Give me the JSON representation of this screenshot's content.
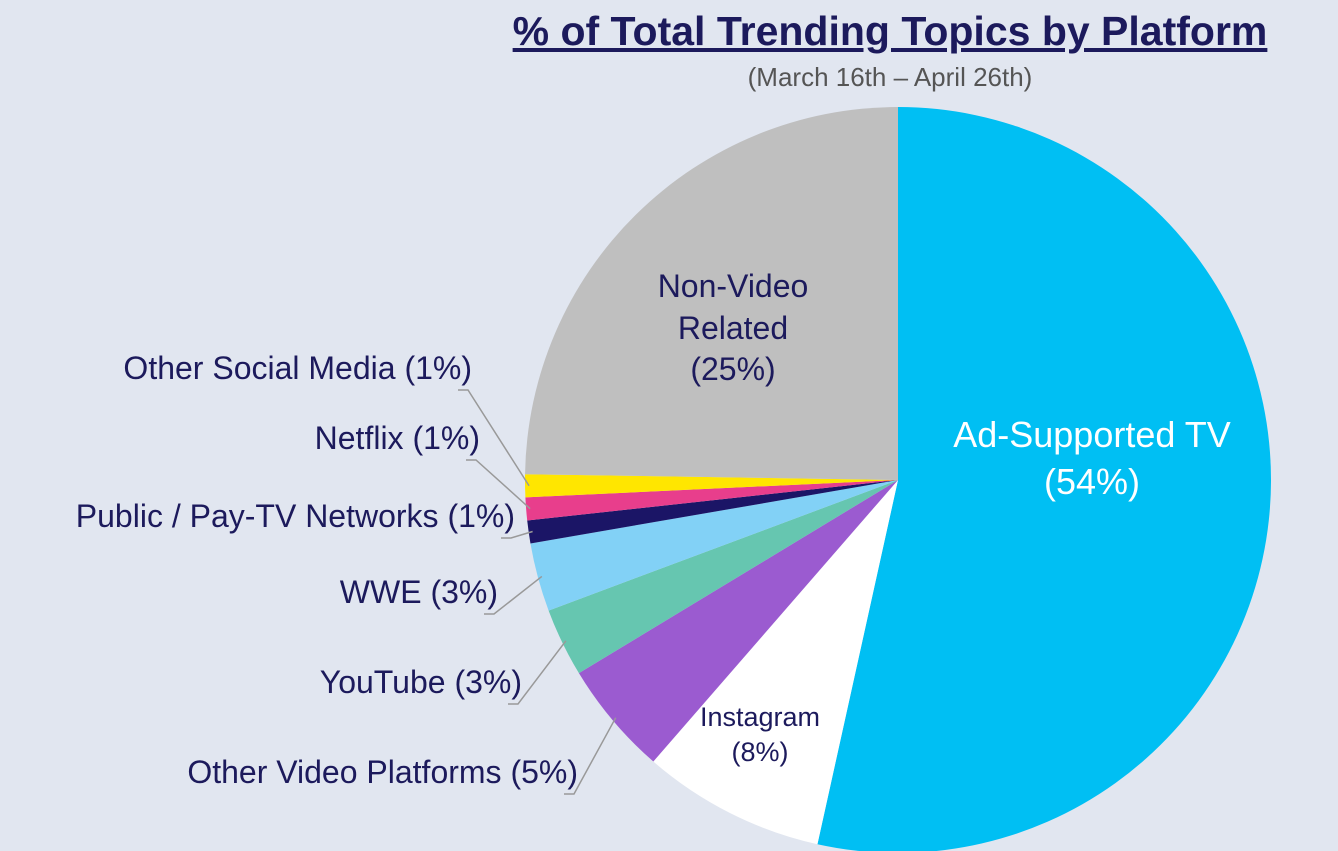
{
  "chart_data": {
    "type": "pie",
    "title": "% of Total Trending Topics by Platform",
    "subtitle": "(March 16th – April 26th)",
    "categories": [
      "Ad-Supported TV",
      "Instagram",
      "Other Video Platforms",
      "YouTube",
      "WWE",
      "Public / Pay-TV Networks",
      "Netflix",
      "Other Social Media",
      "Non-Video Related"
    ],
    "values": [
      54,
      8,
      5,
      3,
      3,
      1,
      1,
      1,
      25
    ],
    "value_labels": [
      "(54%)",
      "(8%)",
      "(5%)",
      "(3%)",
      "(3%)",
      "(1%)",
      "(1%)",
      "(1%)",
      "(25%)"
    ],
    "colors": [
      "#00bff3",
      "#ffffff",
      "#9b5bd0",
      "#66c6b0",
      "#82d1f6",
      "#1b1566",
      "#e83e8c",
      "#ffe600",
      "#bfbfbf"
    ]
  }
}
